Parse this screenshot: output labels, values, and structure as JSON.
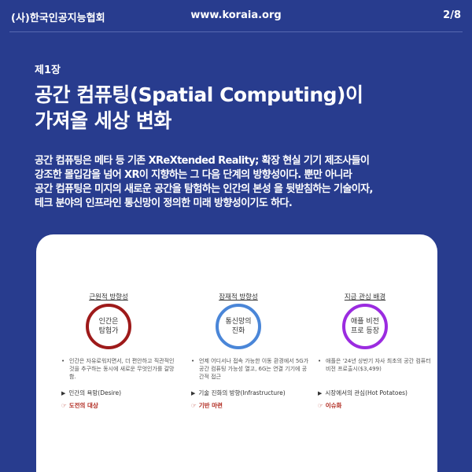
{
  "header": {
    "org": "(사)한국인공지능협회",
    "url": "www.koraia.org",
    "page": "2/8"
  },
  "chapter": "제1장",
  "title": {
    "line1": "공간 컴퓨팅(Spatial Computing)이",
    "line2": "가져올 세상 변화"
  },
  "body": {
    "line1": "공간 컴퓨팅은  메타 등 기존 XReXtended Reality; 확장 현실 기기 제조사들이",
    "line2": "강조한 몰입감을 넘어 XR이 지향하는 그 다음 단계의 방향성이다. 뿐만 아니라",
    "line3": "공간 컴퓨팅은 미지의 새로운 공간을 탐험하는 인간의 본성 을 뒷받침하는 기술이자,",
    "line4": "테크 분야의 인프라인 통신망이 정의한 미래 방향성이기도 하다."
  },
  "card": {
    "columns": [
      {
        "title": "근원적 방향성",
        "circle_line1": "인간은",
        "circle_line2": "탐험가",
        "circle_color": "#9e1a1a",
        "bullet": "인간은 자유로워지면서, 더 편안하고 직관적인 것을 추구하는 동시에 새로운 무엇인가를 갈망함.",
        "arrow": "인간의 욕망(Desire)",
        "result": "도전의 대상"
      },
      {
        "title": "잠재적 방향성",
        "circle_line1": "통신망의",
        "circle_line2": "진화",
        "circle_color": "#4a86d8",
        "bullet": "언제 어디서나 접속 가능한 이동 환경에서 5G가 공간 컴퓨팅 가능성 열고, 6G는 연결 기기에 공간적 접근",
        "arrow": "기술 진화의 방향(Infrastructure)",
        "result": "기반 마련"
      },
      {
        "title": "지금 관심 배경",
        "circle_line1": "애플 비전",
        "circle_line2": "프로 등장",
        "circle_color": "#9b2be0",
        "bullet": "애플은 '24년 상반기 자사 최초의 공간 컴퓨터 비전 프로출시($3,499)",
        "arrow": "시장에서의 관심(Hot Potatoes)",
        "result": "이슈화"
      }
    ]
  }
}
